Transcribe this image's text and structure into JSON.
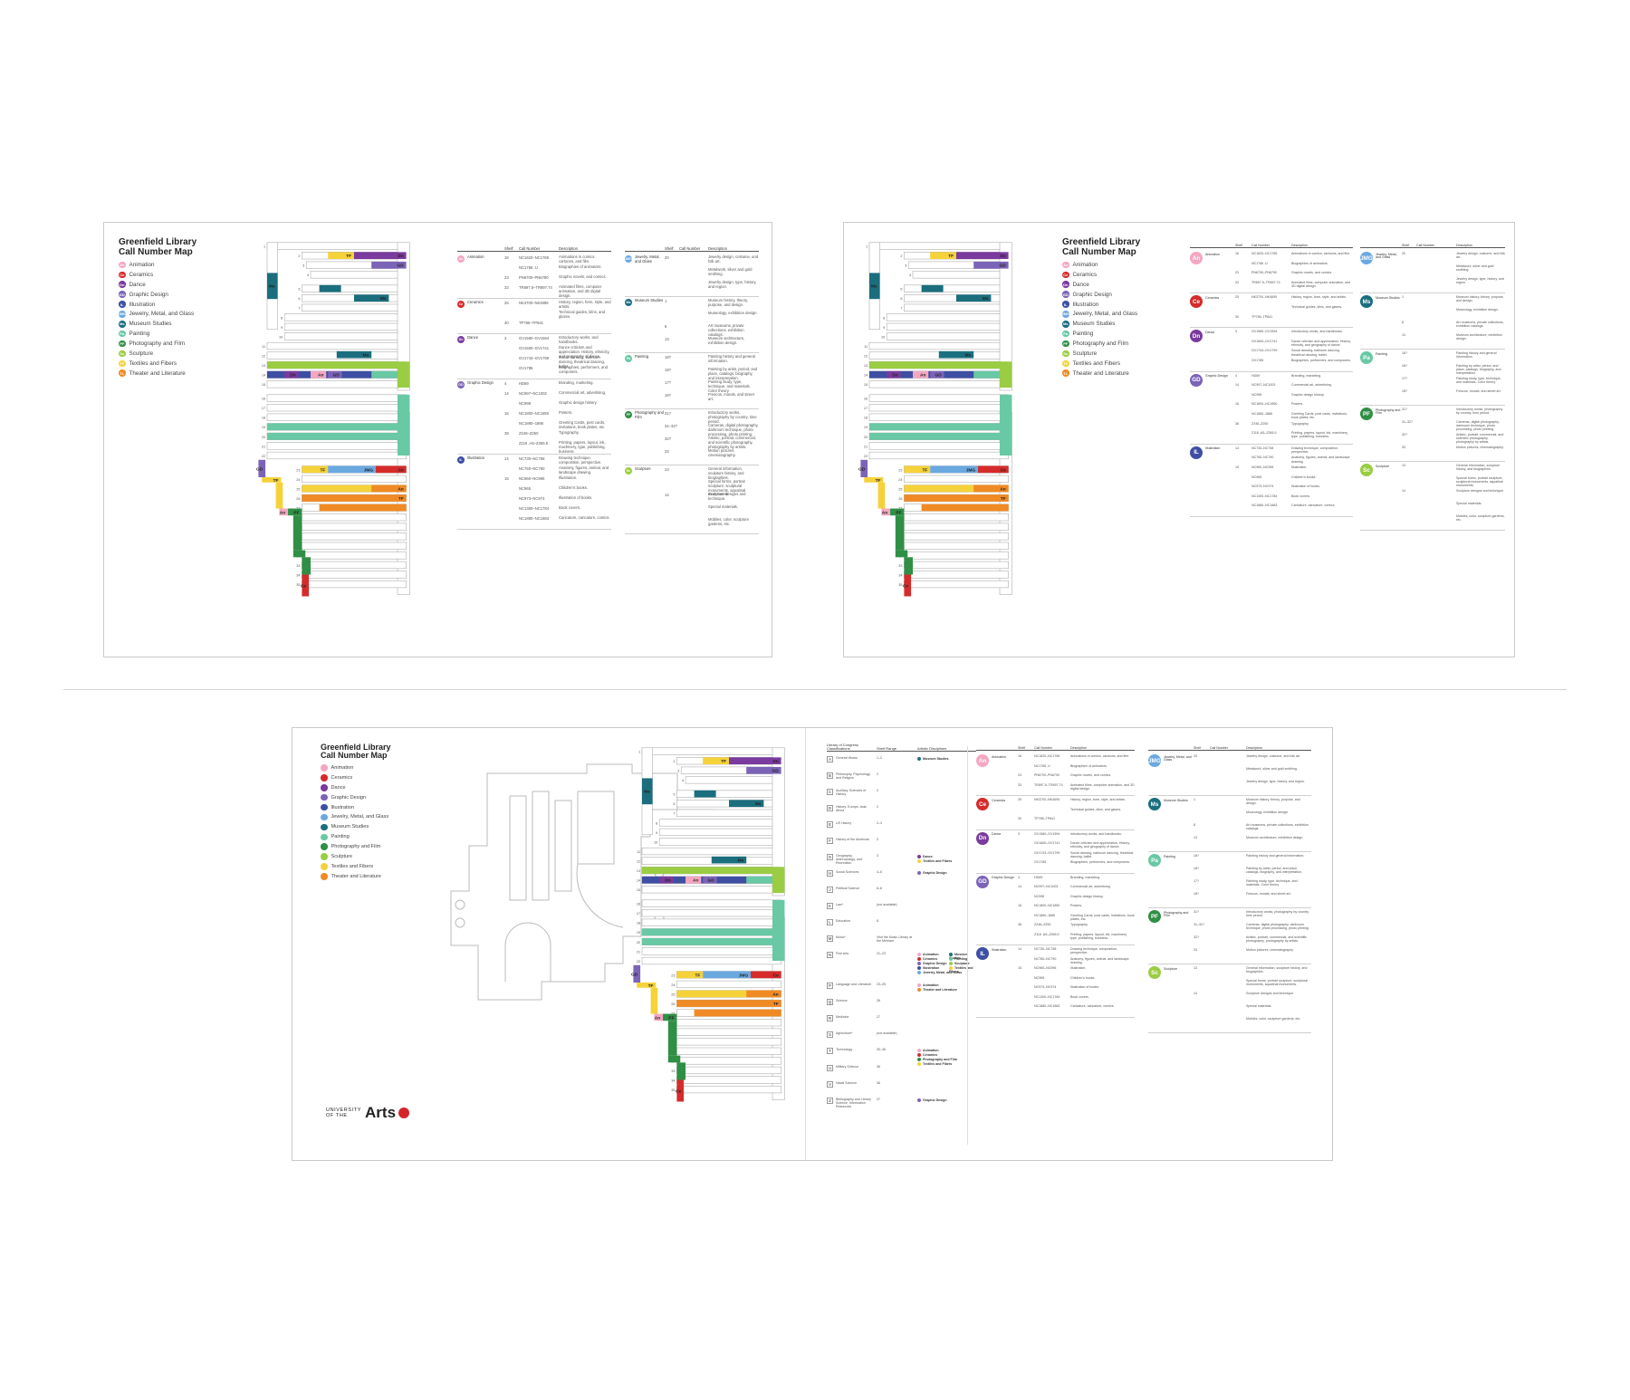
{
  "title": "Greenfield Library\nCall Number Map",
  "university_logo": {
    "line1": "UNIVERSITY",
    "line2": "OF THE",
    "word": "Arts"
  },
  "colors": {
    "An": "#f4a7c1",
    "Ce": "#d62b2b",
    "Dn": "#7a3a9e",
    "GD": "#7b63b8",
    "IL": "#3e4fa3",
    "JMG": "#6aa9e0",
    "Ms": "#1a6e7e",
    "Pa": "#68c9a4",
    "PF": "#2f8f45",
    "Sc": "#9acd43",
    "TF": "#f5d23a",
    "TL": "#f08a24",
    "shelf": "#e6e6e6",
    "shelf_border": "#aaaaaa"
  },
  "legend": [
    {
      "code": "An",
      "label": "Animation"
    },
    {
      "code": "Ce",
      "label": "Ceramics"
    },
    {
      "code": "Dn",
      "label": "Dance"
    },
    {
      "code": "GD",
      "label": "Graphic Design"
    },
    {
      "code": "IL",
      "label": "Illustration"
    },
    {
      "code": "JMG",
      "label": "Jewelry, Metal, and Glass"
    },
    {
      "code": "Ms",
      "label": "Museum Studies"
    },
    {
      "code": "Pa",
      "label": "Painting"
    },
    {
      "code": "PF",
      "label": "Photography and Film"
    },
    {
      "code": "Sc",
      "label": "Sculpture"
    },
    {
      "code": "TF",
      "label": "Textiles and Fibers"
    },
    {
      "code": "TL",
      "label": "Theater and Literature"
    }
  ],
  "table_headers": {
    "shelf": "Shelf",
    "call": "Call Number",
    "desc": "Description"
  },
  "table1": {
    "left": [
      {
        "code": "An",
        "name": "Animation",
        "rows": [
          {
            "shelf": "16",
            "call": "NC1620–NC1765",
            "desc": "Animations in comics, cartoons, and film."
          },
          {
            "shelf": "",
            "call": "NC1766 .U",
            "desc": "Biographies of animators."
          },
          {
            "shelf": "23",
            "call": "PN6700–PN6790",
            "desc": "Graphic novels, and comics."
          },
          {
            "shelf": "33",
            "call": "TR897.5–TR897.74",
            "desc": "Animated films, computer animation, and 3D digital design."
          }
        ]
      },
      {
        "code": "Ce",
        "name": "Ceramics",
        "rows": [
          {
            "shelf": "25",
            "call": "NK3700–NK4695",
            "desc": "History, region, form, style, and artists."
          },
          {
            "shelf": "",
            "call": "",
            "desc": "Technical guides, kilns, and glazes."
          },
          {
            "shelf": "30",
            "call": "TP785–TP841",
            "desc": ""
          }
        ]
      },
      {
        "code": "Dn",
        "name": "Dance",
        "rows": [
          {
            "shelf": "3",
            "call": "GV1580–GV1594",
            "desc": "Introductory works, and handbooks."
          },
          {
            "shelf": "",
            "call": "GV1600–GV1741",
            "desc": "Dance criticism and appreciation. History, ethnicity, and geography of dance."
          },
          {
            "shelf": "",
            "call": "GV1743–GV1799",
            "desc": "Social dancing, ballroom dancing, theatrical dancing, ballet."
          },
          {
            "shelf": "",
            "call": "GV1785",
            "desc": "Biographies, performers, and composers."
          }
        ]
      },
      {
        "code": "GD",
        "name": "Graphic Design",
        "rows": [
          {
            "shelf": "4",
            "call": "HD69",
            "desc": "Branding, marketing."
          },
          {
            "shelf": "14",
            "call": "NC997–NC1003",
            "desc": "Commercial art, advertising."
          },
          {
            "shelf": "",
            "call": "NC998",
            "desc": "Graphic design history."
          },
          {
            "shelf": "16",
            "call": "NC1800–NC1850",
            "desc": "Posters."
          },
          {
            "shelf": "",
            "call": "NC1860–1886",
            "desc": "Greeting Cards, post cards, invitations, book plates, etc."
          },
          {
            "shelf": "38",
            "call": "Z246–Z250",
            "desc": "Typography."
          },
          {
            "shelf": "",
            "call": "Z116 .A5–Z265.5",
            "desc": "Printing, papers, layout, ink, machinery, type, publishing, business."
          }
        ]
      },
      {
        "code": "IL",
        "name": "Illustration",
        "rows": [
          {
            "shelf": "14",
            "call": "NC730–NC758",
            "desc": "Drawing technique, composition, perspective."
          },
          {
            "shelf": "",
            "call": "NC760–NC790",
            "desc": "Anatomy, figures, animal, and landscape drawing."
          },
          {
            "shelf": "15",
            "call": "NC960–NC996",
            "desc": "Illustration."
          },
          {
            "shelf": "",
            "call": "NC965",
            "desc": "Children's books."
          },
          {
            "shelf": "",
            "call": "NC973–NC974",
            "desc": "Illustration of books."
          },
          {
            "shelf": "",
            "call": "NC1300–NC1784",
            "desc": "Book covers."
          },
          {
            "shelf": "",
            "call": "NC1880–NC1883",
            "desc": "Caricature, caricature, comics."
          }
        ]
      }
    ],
    "right": [
      {
        "code": "JMG",
        "name": "Jewelry, Metal, and Glass",
        "rows": [
          {
            "shelf": "20",
            "call": "",
            "desc": "Jewelry design, costume, and folk art."
          },
          {
            "shelf": "",
            "call": "",
            "desc": "Metalwork, silver and gold smithing."
          },
          {
            "shelf": "",
            "call": "",
            "desc": "Jewelry design, type, history, and region."
          }
        ]
      },
      {
        "code": "Ms",
        "name": "Museum Studies",
        "rows": [
          {
            "shelf": "1",
            "call": "",
            "desc": "Museum history, theory, purpose, and design."
          },
          {
            "shelf": "",
            "call": "",
            "desc": "Museology, exhibition design."
          },
          {
            "shelf": "8",
            "call": "",
            "desc": "Art museums, private collections, exhibition catalogs."
          },
          {
            "shelf": "13",
            "call": "",
            "desc": "Museum architecture, exhibition design."
          }
        ]
      },
      {
        "code": "Pa",
        "name": "Painting",
        "rows": [
          {
            "shelf": "18?",
            "call": "",
            "desc": "Painting history and general information."
          },
          {
            "shelf": "18?",
            "call": "",
            "desc": "Painting by artist, period, and place, catalogs, biography, and interpretation."
          },
          {
            "shelf": "17?",
            "call": "",
            "desc": "Painting study, type, technique, and materials. Color theory."
          },
          {
            "shelf": "18?",
            "call": "",
            "desc": "Frescos, murals, and street art."
          }
        ]
      },
      {
        "code": "PF",
        "name": "Photography and Film",
        "rows": [
          {
            "shelf": "31?",
            "call": "",
            "desc": "Introductory works, photography by country, time period."
          },
          {
            "shelf": "31–32?",
            "call": "",
            "desc": "Cameras, digital photography, darkroom technique, photo processing, photo printing."
          },
          {
            "shelf": "32?",
            "call": "",
            "desc": "Artistic, portrait, commercial, and scientific photography, photography by artists."
          },
          {
            "shelf": "33",
            "call": "",
            "desc": "Motion pictures, cinematography."
          }
        ]
      },
      {
        "code": "Sc",
        "name": "Sculpture",
        "rows": [
          {
            "shelf": "13",
            "call": "",
            "desc": "General information, sculpture history, and biographies."
          },
          {
            "shelf": "",
            "call": "",
            "desc": "Special forms, portrait sculpture, sculptural monuments, aquatinal monuments."
          },
          {
            "shelf": "14",
            "call": "",
            "desc": "Sculpture designs and technique."
          },
          {
            "shelf": "",
            "call": "",
            "desc": "Special materials."
          },
          {
            "shelf": "",
            "call": "",
            "desc": "Mobiles, color, sculpture gardens, etc."
          }
        ]
      }
    ]
  },
  "lcc_headers": {
    "c1": "Library of Congress Classifications",
    "c2": "Shelf Range",
    "c3": "Artistic Disciplines"
  },
  "lcc": [
    {
      "letter": "A",
      "name": "General Works",
      "range": "1–2",
      "tags": [
        "Museum Studies"
      ]
    },
    {
      "letter": "B",
      "name": "Philosophy, Psychology, and Religion",
      "range": "2",
      "tags": []
    },
    {
      "letter": "C",
      "name": "Auxiliary Sciences of History",
      "range": "2",
      "tags": []
    },
    {
      "letter": "D",
      "name": "History: Europe, Asia, Africa",
      "range": "2",
      "tags": []
    },
    {
      "letter": "E",
      "name": "US History",
      "range": "2–3",
      "tags": []
    },
    {
      "letter": "F",
      "name": "History of the Americas",
      "range": "3",
      "tags": []
    },
    {
      "letter": "G",
      "name": "Geography, Anthropology, and Recreation",
      "range": "3",
      "tags": [
        "Dance",
        "Textiles and Fibers"
      ]
    },
    {
      "letter": "H",
      "name": "Social Sciences",
      "range": "4–6",
      "tags": [
        "Graphic Design"
      ]
    },
    {
      "letter": "J",
      "name": "Political Science",
      "range": "6–8",
      "tags": []
    },
    {
      "letter": "K",
      "name": "Law*",
      "range": "(not available)",
      "tags": []
    },
    {
      "letter": "L",
      "name": "Education",
      "range": "8",
      "tags": []
    },
    {
      "letter": "M",
      "name": "Music*",
      "range": "Visit the Music Library at the Merriam",
      "tags": []
    },
    {
      "letter": "N",
      "name": "Fine Arts",
      "range": "21–23",
      "tags": [
        "Animation",
        "Ceramics",
        "Graphic Design",
        "Illustration",
        "Jewelry, Metal, and Glass",
        "Museum Studies",
        "Painting",
        "Sculpture",
        "Textiles and Fibers"
      ]
    },
    {
      "letter": "P",
      "name": "Language and Literature",
      "range": "23–25",
      "tags": [
        "Animation",
        "Theater and Literature"
      ]
    },
    {
      "letter": "Q",
      "name": "Science",
      "range": "26",
      "tags": []
    },
    {
      "letter": "R",
      "name": "Medicine",
      "range": "27",
      "tags": []
    },
    {
      "letter": "S",
      "name": "Agriculture*",
      "range": "(not available)",
      "tags": []
    },
    {
      "letter": "T",
      "name": "Technology",
      "range": "30–36",
      "tags": [
        "Animation",
        "Ceramics",
        "Photography and Film",
        "Textiles and Fibers"
      ]
    },
    {
      "letter": "U",
      "name": "Military Science",
      "range": "36",
      "tags": []
    },
    {
      "letter": "V",
      "name": "Naval Science",
      "range": "36",
      "tags": []
    },
    {
      "letter": "Z",
      "name": "Bibliography and Library Science, Information Resources",
      "range": "37",
      "tags": [
        "Graphic Design"
      ]
    }
  ],
  "map_labels": [
    "Ms",
    "GD",
    "Dn",
    "TF",
    "Sc",
    "Pa",
    "IL",
    "An",
    "JMG",
    "Ce",
    "PF"
  ],
  "shelf_numbers": [
    "1",
    "2",
    "3",
    "4",
    "5",
    "6",
    "7",
    "8",
    "9",
    "10",
    "11",
    "12",
    "13",
    "14",
    "15",
    "16",
    "17",
    "18",
    "19",
    "20",
    "21",
    "22",
    "23",
    "24",
    "25",
    "26",
    "27",
    "28",
    "29",
    "30",
    "31",
    "32",
    "33",
    "34",
    "35",
    "36",
    "37",
    "38"
  ]
}
